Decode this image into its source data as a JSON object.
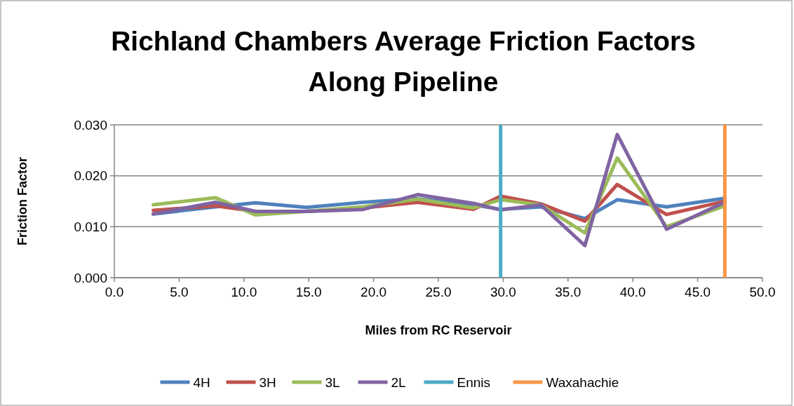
{
  "chart_data": {
    "type": "line",
    "title": "Richland Chambers Average Friction Factors\nAlong Pipeline",
    "xlabel": "Miles from RC Reservoir",
    "ylabel": "Friction Factor",
    "x": [
      3.0,
      7.8,
      10.9,
      14.8,
      19.2,
      23.4,
      27.7,
      29.8,
      32.9,
      36.3,
      38.8,
      42.6,
      47.1
    ],
    "series": [
      {
        "name": "4H",
        "color": "#4f81bd",
        "values": [
          0.0125,
          0.0139,
          0.0147,
          0.0138,
          0.0148,
          0.0155,
          0.0143,
          0.0134,
          0.0139,
          0.0116,
          0.0153,
          0.0139,
          0.0156
        ]
      },
      {
        "name": "3H",
        "color": "#c0504d",
        "values": [
          0.0132,
          0.0141,
          0.013,
          0.013,
          0.0137,
          0.0148,
          0.0134,
          0.016,
          0.0145,
          0.0111,
          0.0183,
          0.0124,
          0.015
        ]
      },
      {
        "name": "3L",
        "color": "#9bbb59",
        "values": [
          0.0143,
          0.0157,
          0.0123,
          0.013,
          0.0139,
          0.0154,
          0.0137,
          0.0153,
          0.0143,
          0.0088,
          0.0235,
          0.01,
          0.0141
        ]
      },
      {
        "name": "2L",
        "color": "#8064a2",
        "values": [
          0.0125,
          0.0148,
          0.013,
          0.013,
          0.0134,
          0.0163,
          0.0146,
          0.0133,
          0.0143,
          0.0063,
          0.0281,
          0.0095,
          0.0148
        ]
      }
    ],
    "ref_lines": [
      {
        "axis": "x",
        "value": 29.8,
        "label": "Ennis",
        "color": "#4bacc6"
      },
      {
        "axis": "x",
        "value": 47.1,
        "label": "Waxahachie",
        "color": "#f79646"
      }
    ],
    "xlim": [
      0,
      50
    ],
    "xticks": [
      {
        "value": 0,
        "label": "0.0"
      },
      {
        "value": 5,
        "label": "5.0"
      },
      {
        "value": 10,
        "label": "10.0"
      },
      {
        "value": 15,
        "label": "15.0"
      },
      {
        "value": 20,
        "label": "20.0"
      },
      {
        "value": 25,
        "label": "25.0"
      },
      {
        "value": 30,
        "label": "30.0"
      },
      {
        "value": 35,
        "label": "35.0"
      },
      {
        "value": 40,
        "label": "40.0"
      },
      {
        "value": 45,
        "label": "45.0"
      },
      {
        "value": 50,
        "label": "50.0"
      }
    ],
    "ylim": [
      0,
      0.03
    ],
    "yticks": [
      {
        "value": 0,
        "label": "0.000"
      },
      {
        "value": 0.01,
        "label": "0.010"
      },
      {
        "value": 0.02,
        "label": "0.020"
      },
      {
        "value": 0.03,
        "label": "0.030"
      }
    ],
    "grid": "y",
    "legend": "bottom",
    "marker": "none",
    "line_style": "solid"
  }
}
